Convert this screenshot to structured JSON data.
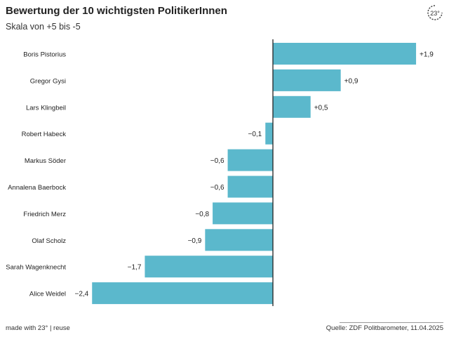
{
  "header": {
    "title": "Bewertung der 10 wichtigsten PolitikerInnen",
    "subtitle": "Skala von +5 bis -5"
  },
  "footer": {
    "credit": "made with 23° | reuse",
    "source": "Quelle: ZDF Politbarometer, 11.04.2025"
  },
  "logo": {
    "icon": "23-degrees-logo-icon",
    "text": "23°"
  },
  "colors": {
    "bar": "#5bb8cc",
    "axis": "#222222"
  },
  "chart_data": {
    "type": "bar",
    "orientation": "horizontal",
    "title": "Bewertung der 10 wichtigsten PolitikerInnen",
    "subtitle": "Skala von +5 bis -5",
    "categories": [
      "Boris Pistorius",
      "Gregor Gysi",
      "Lars Klingbeil",
      "Robert Habeck",
      "Markus Söder",
      "Annalena Baerbock",
      "Friedrich Merz",
      "Olaf Scholz",
      "Sarah Wagenknecht",
      "Alice Weidel"
    ],
    "values": [
      1.9,
      0.9,
      0.5,
      -0.1,
      -0.6,
      -0.6,
      -0.8,
      -0.9,
      -1.7,
      -2.4
    ],
    "labels": [
      "+1,9",
      "+0,9",
      "+0,5",
      "−0,1",
      "−0,6",
      "−0,6",
      "−0,8",
      "−0,9",
      "−1,7",
      "−2,4"
    ],
    "xlim": [
      -2.4,
      1.9
    ],
    "grid": false,
    "legend": "none"
  }
}
